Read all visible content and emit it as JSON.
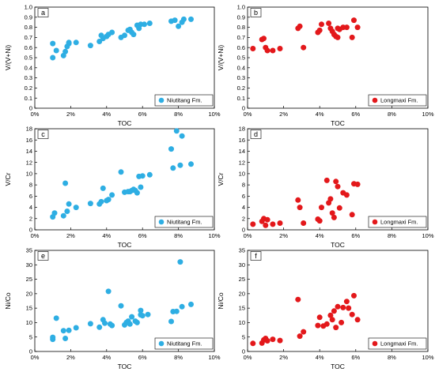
{
  "colors": {
    "blue": "#2eaee3",
    "red": "#e3181b",
    "axis": "#000000"
  },
  "chart_data": [
    {
      "id": "a",
      "type": "scatter",
      "panel_label": "a",
      "xlabel": "TOC",
      "ylabel": "V/(V+Ni)",
      "xlim": [
        0,
        10
      ],
      "ylim": [
        0,
        1
      ],
      "xticks": [
        "0%",
        "2%",
        "4%",
        "6%",
        "8%",
        "10%"
      ],
      "yticks": [
        "0",
        "0.1",
        "0.2",
        "0.3",
        "0.4",
        "0.5",
        "0.6",
        "0.7",
        "0.8",
        "0.9",
        "1.0"
      ],
      "legend": "Niutitang Fm.",
      "legend_position": "bottom-right",
      "color": "blue",
      "x": [
        1.0,
        1.0,
        1.2,
        1.6,
        1.7,
        1.8,
        1.9,
        1.9,
        2.3,
        3.1,
        3.6,
        3.7,
        3.8,
        4.0,
        4.1,
        4.3,
        4.8,
        5.0,
        5.2,
        5.3,
        5.4,
        5.5,
        5.7,
        5.8,
        5.9,
        6.1,
        6.4,
        7.6,
        7.8,
        8.0,
        8.2,
        8.3,
        8.7
      ],
      "y": [
        0.5,
        0.64,
        0.57,
        0.52,
        0.56,
        0.61,
        0.64,
        0.65,
        0.65,
        0.62,
        0.66,
        0.72,
        0.69,
        0.71,
        0.73,
        0.75,
        0.7,
        0.72,
        0.77,
        0.78,
        0.75,
        0.73,
        0.82,
        0.79,
        0.83,
        0.83,
        0.84,
        0.86,
        0.87,
        0.81,
        0.85,
        0.88,
        0.88
      ]
    },
    {
      "id": "b",
      "type": "scatter",
      "panel_label": "b",
      "xlabel": "TOC",
      "ylabel": "V/(V+Ni)",
      "xlim": [
        0,
        10
      ],
      "ylim": [
        0,
        1
      ],
      "xticks": [
        "0%",
        "2%",
        "4%",
        "6%",
        "8%",
        "10%"
      ],
      "yticks": [
        "0",
        "0.1",
        "0.2",
        "0.3",
        "0.4",
        "0.5",
        "0.6",
        "0.7",
        "0.8",
        "0.9",
        "1.0"
      ],
      "legend": "Longmaxi Fm.",
      "legend_position": "bottom-right",
      "color": "red",
      "x": [
        0.3,
        0.8,
        0.9,
        1.0,
        1.1,
        1.4,
        1.8,
        2.8,
        2.9,
        3.1,
        3.9,
        4.0,
        4.1,
        4.5,
        4.6,
        4.7,
        4.8,
        4.9,
        5.0,
        5.0,
        5.1,
        5.3,
        5.5,
        5.8,
        5.9,
        6.1
      ],
      "y": [
        0.59,
        0.68,
        0.69,
        0.6,
        0.57,
        0.57,
        0.59,
        0.79,
        0.81,
        0.6,
        0.75,
        0.77,
        0.83,
        0.84,
        0.79,
        0.76,
        0.73,
        0.71,
        0.7,
        0.79,
        0.78,
        0.8,
        0.8,
        0.7,
        0.87,
        0.8
      ]
    },
    {
      "id": "c",
      "type": "scatter",
      "panel_label": "c",
      "xlabel": "TOC",
      "ylabel": "V/Cr",
      "xlim": [
        0,
        10
      ],
      "ylim": [
        0,
        18
      ],
      "xticks": [
        "0%",
        "2%",
        "4%",
        "6%",
        "8%",
        "10%"
      ],
      "yticks": [
        "0",
        "2",
        "4",
        "6",
        "8",
        "10",
        "12",
        "14",
        "16",
        "18"
      ],
      "legend": "Niutitang Fm.",
      "legend_position": "bottom-right",
      "color": "blue",
      "x": [
        1.0,
        1.1,
        1.6,
        1.7,
        1.8,
        1.9,
        2.3,
        3.1,
        3.6,
        3.7,
        3.8,
        4.0,
        4.1,
        4.3,
        4.8,
        5.0,
        5.2,
        5.3,
        5.4,
        5.5,
        5.6,
        5.7,
        5.8,
        5.9,
        6.0,
        6.4,
        7.6,
        7.7,
        7.9,
        8.1,
        8.2,
        8.7
      ],
      "y": [
        2.3,
        3.0,
        2.5,
        8.3,
        3.3,
        4.6,
        4.0,
        4.7,
        4.6,
        5.0,
        7.4,
        5.2,
        5.4,
        6.2,
        10.3,
        6.7,
        6.8,
        6.8,
        7.0,
        7.2,
        7.0,
        6.6,
        9.5,
        7.6,
        9.6,
        9.8,
        14.4,
        11.0,
        17.6,
        11.5,
        16.7,
        11.7
      ]
    },
    {
      "id": "d",
      "type": "scatter",
      "panel_label": "d",
      "xlabel": "TOC",
      "ylabel": "V/Cr",
      "xlim": [
        0,
        10
      ],
      "ylim": [
        0,
        18
      ],
      "xticks": [
        "0%",
        "2%",
        "4%",
        "6%",
        "8%",
        "10%"
      ],
      "yticks": [
        "0",
        "2",
        "4",
        "6",
        "8",
        "10",
        "12",
        "14",
        "16",
        "18"
      ],
      "legend": "Longmaxi Fm.",
      "legend_position": "bottom-right",
      "color": "red",
      "x": [
        0.3,
        0.8,
        0.9,
        1.0,
        1.1,
        1.4,
        1.8,
        2.8,
        2.9,
        3.1,
        3.9,
        4.0,
        4.1,
        4.4,
        4.5,
        4.6,
        4.7,
        4.8,
        4.9,
        5.0,
        5.1,
        5.3,
        5.5,
        5.8,
        5.9,
        6.1
      ],
      "y": [
        1.0,
        1.5,
        2.0,
        0.8,
        1.8,
        1.0,
        1.2,
        5.3,
        4.0,
        1.2,
        1.9,
        1.6,
        4.0,
        8.8,
        4.8,
        5.5,
        3.0,
        2.2,
        8.6,
        7.7,
        3.9,
        6.6,
        6.2,
        2.7,
        8.2,
        8.1
      ]
    },
    {
      "id": "e",
      "type": "scatter",
      "panel_label": "e",
      "xlabel": "TOC",
      "ylabel": "Ni/Co",
      "xlim": [
        0,
        10
      ],
      "ylim": [
        0,
        35
      ],
      "xticks": [
        "0%",
        "2%",
        "4%",
        "6%",
        "8%",
        "10%"
      ],
      "yticks": [
        "0",
        "5",
        "10",
        "15",
        "20",
        "25",
        "30",
        "35"
      ],
      "legend": "Niutitang Fm.",
      "legend_position": "bottom-right",
      "color": "blue",
      "x": [
        1.0,
        1.0,
        1.2,
        1.6,
        1.7,
        1.9,
        2.3,
        3.1,
        3.6,
        3.8,
        3.9,
        4.1,
        4.2,
        4.3,
        4.8,
        5.0,
        5.1,
        5.2,
        5.3,
        5.4,
        5.6,
        5.7,
        5.9,
        5.9,
        6.0,
        6.3,
        7.6,
        7.7,
        7.9,
        8.1,
        8.2,
        8.7
      ],
      "y": [
        4.2,
        4.9,
        11.5,
        7.2,
        4.5,
        7.3,
        8.2,
        9.6,
        8.4,
        11.0,
        9.8,
        20.8,
        9.5,
        9.0,
        15.8,
        9.2,
        10.0,
        10.5,
        9.5,
        12.0,
        10.5,
        10.0,
        12.7,
        14.2,
        12.4,
        12.8,
        10.4,
        13.8,
        13.9,
        31.0,
        15.5,
        16.3
      ]
    },
    {
      "id": "f",
      "type": "scatter",
      "panel_label": "f",
      "xlabel": "TOC",
      "ylabel": "Ni/Co",
      "xlim": [
        0,
        10
      ],
      "ylim": [
        0,
        35
      ],
      "xticks": [
        "0%",
        "2%",
        "4%",
        "6%",
        "8%",
        "10%"
      ],
      "yticks": [
        "0",
        "5",
        "10",
        "15",
        "20",
        "25",
        "30",
        "35"
      ],
      "legend": "Longmaxi Fm.",
      "legend_position": "bottom-right",
      "color": "red",
      "x": [
        0.3,
        0.8,
        0.9,
        1.0,
        1.1,
        1.4,
        1.8,
        2.8,
        2.9,
        3.1,
        3.9,
        4.0,
        4.2,
        4.4,
        4.6,
        4.7,
        4.8,
        4.9,
        5.0,
        5.2,
        5.3,
        5.5,
        5.6,
        5.8,
        5.9,
        6.1
      ],
      "y": [
        2.8,
        2.9,
        4.0,
        4.5,
        3.7,
        4.2,
        3.8,
        18.0,
        5.3,
        6.8,
        9.0,
        11.8,
        8.8,
        9.5,
        12.5,
        11.0,
        14.0,
        8.3,
        15.5,
        10.0,
        15.2,
        17.3,
        15.0,
        12.8,
        19.3,
        11.0
      ]
    }
  ]
}
